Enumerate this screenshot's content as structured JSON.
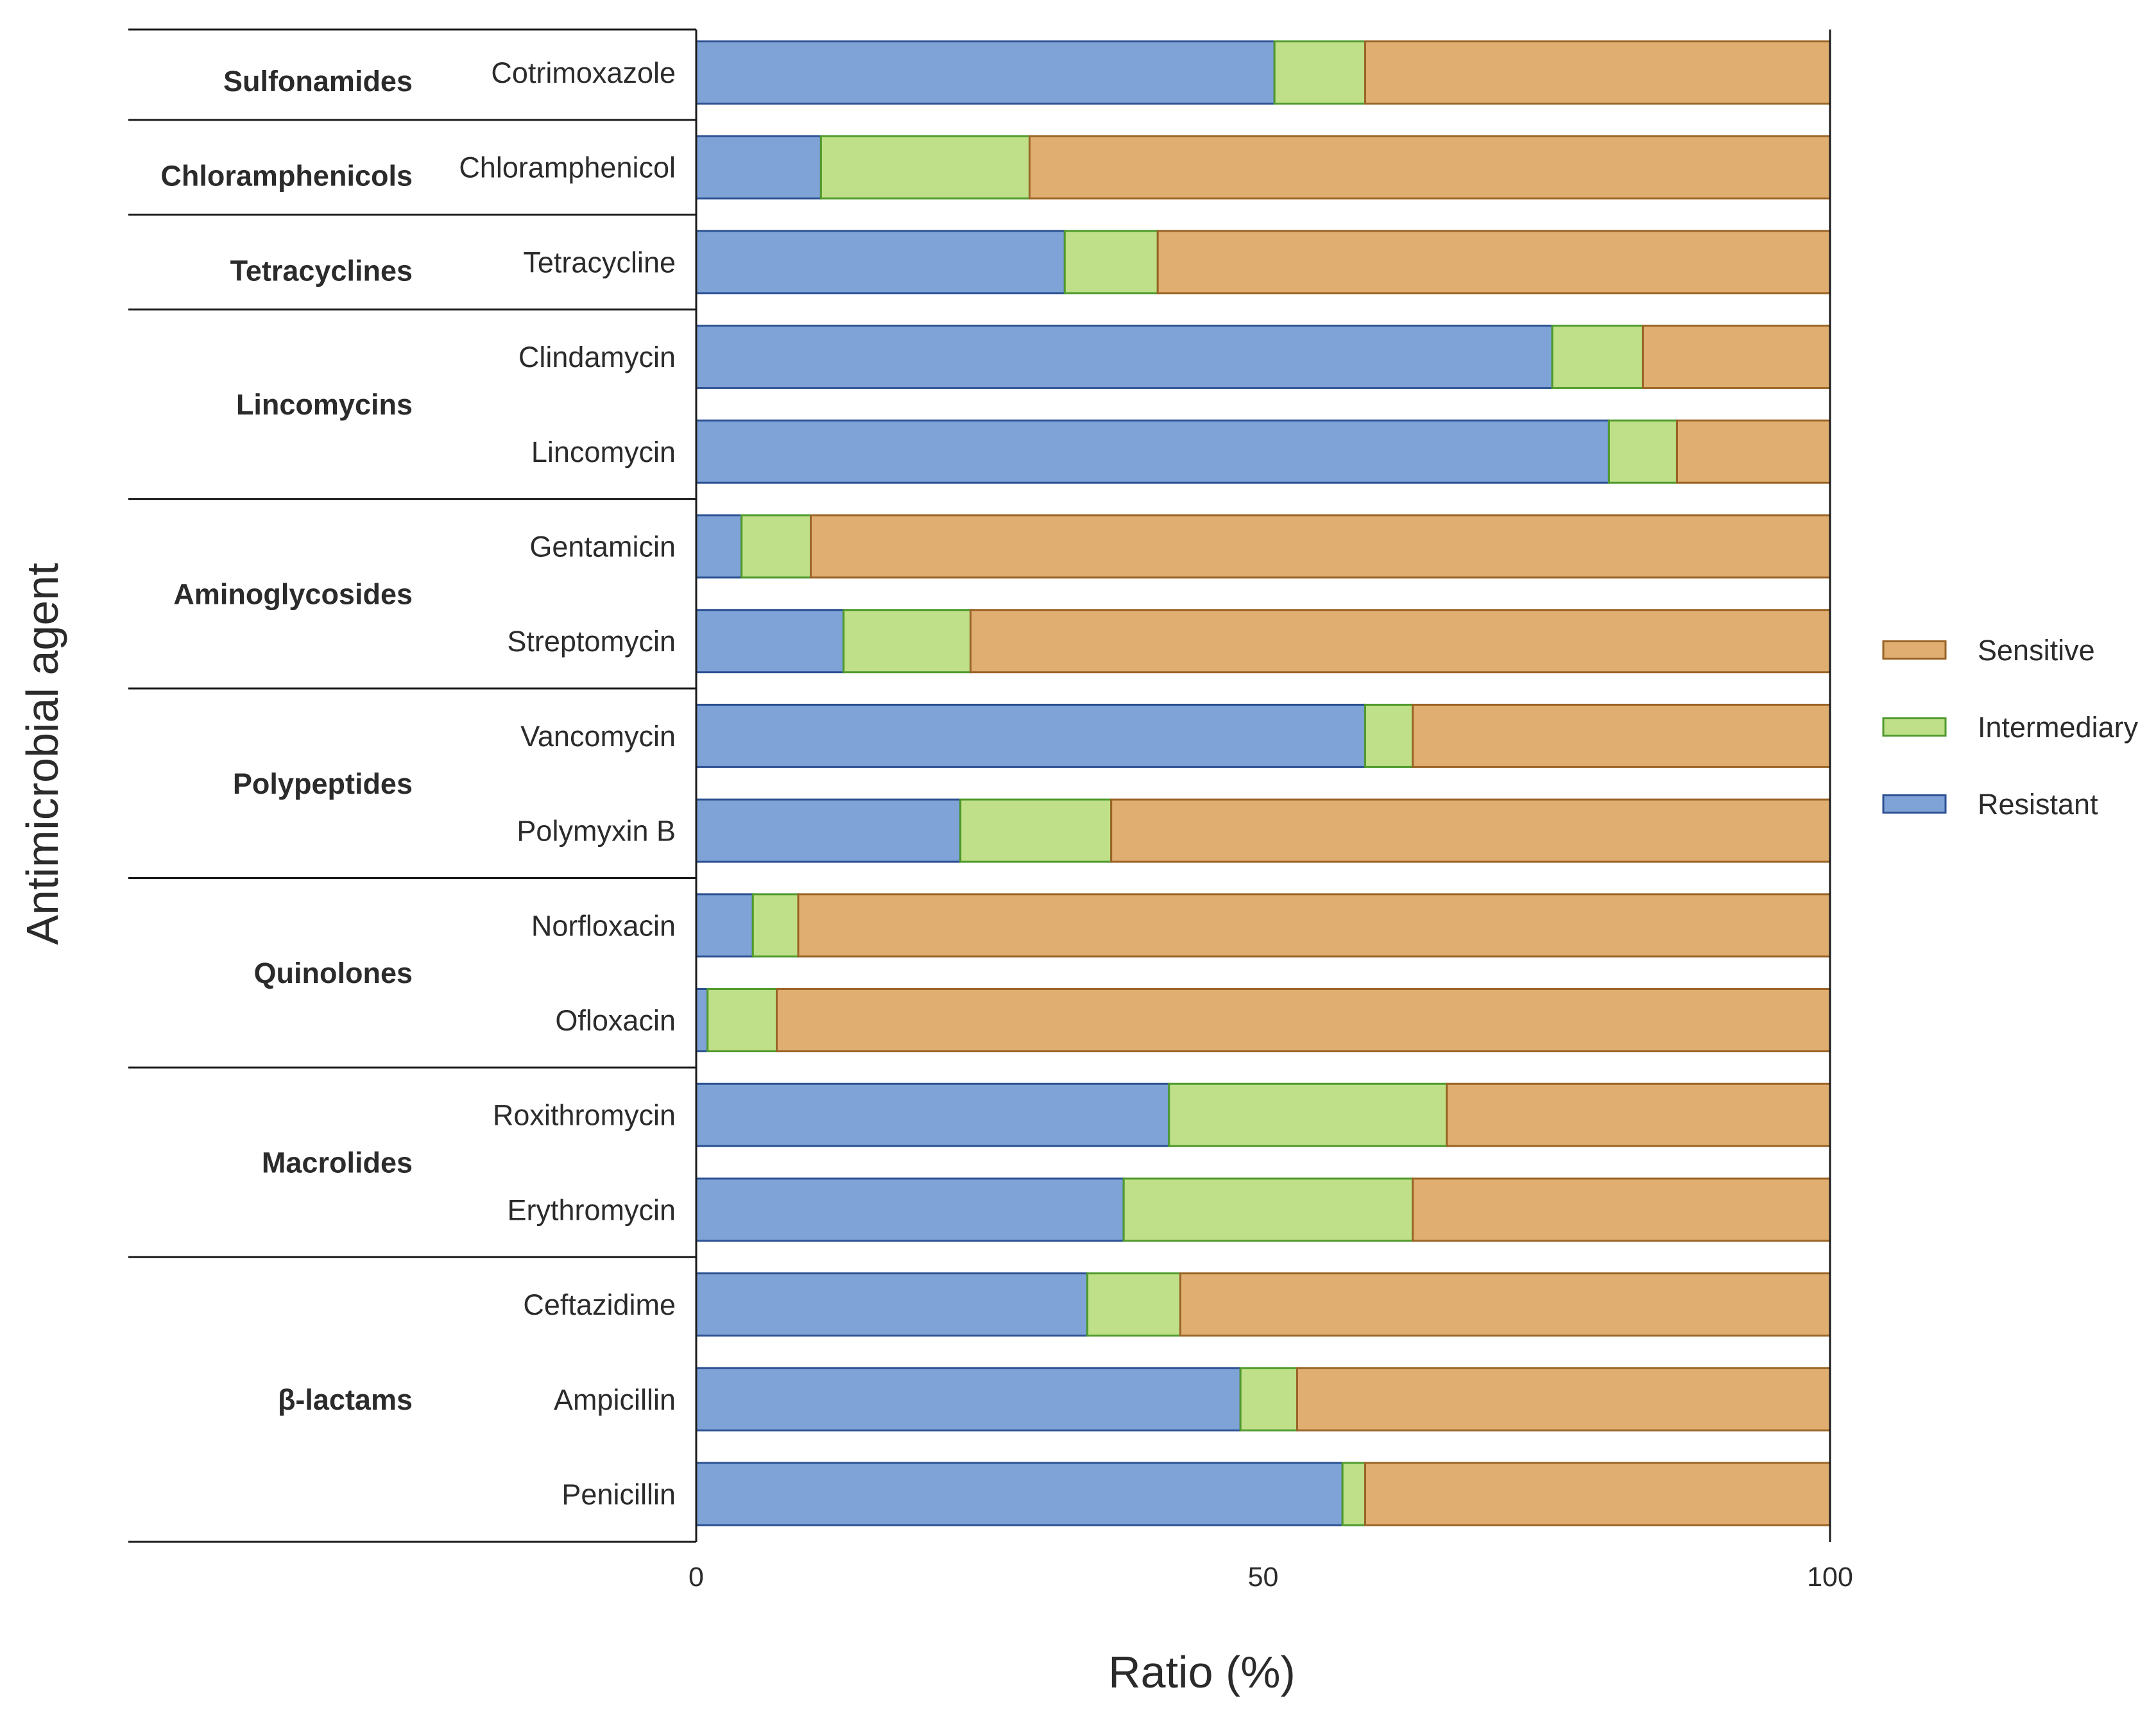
{
  "chart_data": {
    "type": "bar",
    "orientation": "horizontal",
    "stacked": true,
    "xlabel": "Ratio (%)",
    "ylabel": "Antimicrobial agent",
    "xlim": [
      0,
      100
    ],
    "xticks": [
      0,
      50,
      100
    ],
    "legend_position": "right",
    "legend": [
      "Sensitive",
      "Intermediary",
      "Resistant"
    ],
    "colors": {
      "Resistant": {
        "fill": "#7fa3d6",
        "stroke": "#2c5193"
      },
      "Intermediary": {
        "fill": "#bfdf89",
        "stroke": "#4f9a2c"
      },
      "Sensitive": {
        "fill": "#dfae70",
        "stroke": "#9a6426"
      }
    },
    "groups": [
      {
        "name": "Sulfonamides",
        "drugs": [
          "Cotrimoxazole"
        ]
      },
      {
        "name": "Chloramphenicols",
        "drugs": [
          "Chloramphenicol"
        ]
      },
      {
        "name": "Tetracyclines",
        "drugs": [
          "Tetracycline"
        ]
      },
      {
        "name": "Lincomycins",
        "drugs": [
          "Clindamycin",
          "Lincomycin"
        ]
      },
      {
        "name": "Aminoglycosides",
        "drugs": [
          "Gentamicin",
          "Streptomycin"
        ]
      },
      {
        "name": "Polypeptides",
        "drugs": [
          "Vancomycin",
          "Polymyxin B"
        ]
      },
      {
        "name": "Quinolones",
        "drugs": [
          "Norfloxacin",
          "Ofloxacin"
        ]
      },
      {
        "name": "Macrolides",
        "drugs": [
          "Roxithromycin",
          "Erythromycin"
        ]
      },
      {
        "name": "β-lactams",
        "drugs": [
          "Ceftazidime",
          "Ampicillin",
          "Penicillin"
        ]
      }
    ],
    "categories": [
      "Cotrimoxazole",
      "Chloramphenicol",
      "Tetracycline",
      "Clindamycin",
      "Lincomycin",
      "Gentamicin",
      "Streptomycin",
      "Vancomycin",
      "Polymyxin B",
      "Norfloxacin",
      "Ofloxacin",
      "Roxithromycin",
      "Erythromycin",
      "Ceftazidime",
      "Ampicillin",
      "Penicillin"
    ],
    "series": [
      {
        "name": "Resistant",
        "values": [
          51,
          11,
          32.5,
          75.5,
          80.5,
          4,
          13,
          59,
          23.3,
          5,
          1,
          41.7,
          37.7,
          34.5,
          48,
          57
        ]
      },
      {
        "name": "Intermediary",
        "values": [
          8,
          18.4,
          8.2,
          8,
          6,
          6.1,
          11.2,
          4.2,
          13.3,
          4,
          6.1,
          24.5,
          25.5,
          8.2,
          5,
          2
        ]
      },
      {
        "name": "Sensitive",
        "values": [
          41,
          70.6,
          59.3,
          16.5,
          13.5,
          89.9,
          75.8,
          36.8,
          63.4,
          91,
          92.9,
          33.8,
          36.8,
          57.3,
          47,
          41
        ]
      }
    ]
  }
}
